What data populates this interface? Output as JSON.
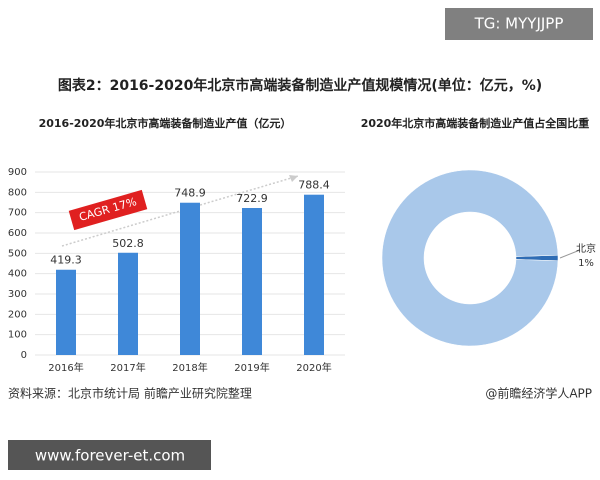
{
  "title": "图表2：2016-2020年北京市高端装备制造业产值规模情况(单位：亿元，%)",
  "source": "资料来源：北京市统计局 前瞻产业研究院整理",
  "credit": "@前瞻经济学人APP",
  "watermark_top": "TG: MYYJJPP",
  "watermark_bottom": "www.forever-et.com",
  "chart_data": [
    {
      "type": "bar",
      "title": "2016-2020年北京市高端装备制造业产值（亿元）",
      "categories": [
        "2016年",
        "2017年",
        "2018年",
        "2019年",
        "2020年"
      ],
      "values": [
        419.3,
        502.8,
        748.9,
        722.9,
        788.4
      ],
      "color": "#3f88d8",
      "ylim": [
        0,
        900
      ],
      "yticks": [
        0,
        100,
        200,
        300,
        400,
        500,
        600,
        700,
        800,
        900
      ],
      "grid": true,
      "annotation": "CAGR 17%"
    },
    {
      "type": "donut",
      "title": "2020年北京市高端装备制造业产值占全国比重",
      "categories": [
        "北京",
        null
      ],
      "values": [
        1,
        99
      ],
      "value_labels": [
        "1%",
        null
      ],
      "colors": [
        "#2f6db5",
        "#a9c8ea"
      ]
    }
  ]
}
